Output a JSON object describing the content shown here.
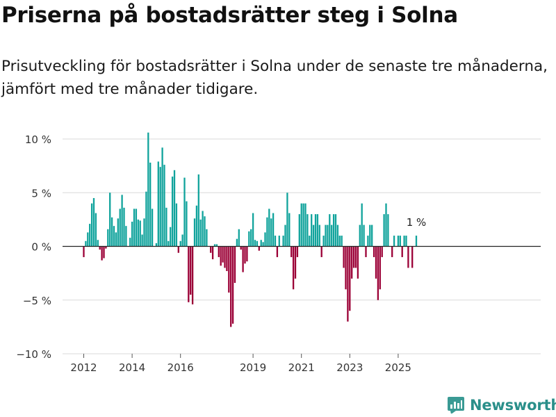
{
  "header": {
    "title": "Priserna på bostadsrätter steg i Solna",
    "subtitle": "Prisutveckling för bostadsrätter i Solna under de senaste tre månaderna, jämfört med tre månader tidigare."
  },
  "brand": {
    "name": "Newsworthy",
    "icon": "newsworthy-logo-icon",
    "color": "#3a9a94"
  },
  "colors": {
    "positive": "#10a39c",
    "negative": "#9b0036",
    "grid": "#d9d9d9",
    "zero_line": "#222222",
    "axis_text": "#333333"
  },
  "chart_data": {
    "type": "bar",
    "title": "",
    "xlabel": "",
    "ylabel": "",
    "unit": "%",
    "ylim": [
      -10,
      10
    ],
    "yticks": [
      10,
      5,
      0,
      -5,
      -10
    ],
    "ytick_labels": [
      "10 %",
      "5 %",
      "0 %",
      "−5 %",
      "−10 %"
    ],
    "x_start": "2012-01",
    "xticks": [
      "2012",
      "2014",
      "2016",
      "2019",
      "2021",
      "2023",
      "2025"
    ],
    "grid": true,
    "annotation": {
      "text": "1 %",
      "target": "last"
    },
    "values": [
      -1,
      0.5,
      1.3,
      2.1,
      4,
      4.5,
      3.1,
      0.6,
      -0.3,
      -1.3,
      -1.1,
      -0.2,
      1.6,
      5,
      2.7,
      1.9,
      1.3,
      2.6,
      3.5,
      4.8,
      3.6,
      1.9,
      0,
      0.8,
      2.3,
      3.5,
      3.5,
      2.5,
      2.4,
      1.1,
      2.6,
      5.1,
      10.6,
      7.8,
      3.5,
      0,
      0.3,
      7.9,
      7.4,
      9.2,
      7.6,
      3.6,
      0.5,
      1.8,
      6.5,
      7.1,
      4,
      -0.6,
      0.5,
      1.1,
      6.4,
      4.2,
      -5.2,
      -4.5,
      -5.4,
      2.6,
      3.8,
      6.7,
      2.5,
      3.3,
      2.8,
      1.6,
      0,
      -0.6,
      -1.2,
      0.2,
      0.2,
      -1,
      -1.8,
      -1.5,
      -2,
      -2.3,
      -4.3,
      -7.5,
      -7.2,
      -3.4,
      0.7,
      1.6,
      -0.3,
      -2.4,
      -1.6,
      -1.4,
      1.4,
      1.6,
      3.1,
      0.6,
      0.5,
      -0.4,
      0.6,
      0.4,
      1.3,
      2.7,
      3.5,
      2.6,
      3.1,
      1,
      -1,
      1,
      0,
      1,
      2,
      5,
      3.1,
      -1,
      -4,
      -3,
      -1,
      3,
      4,
      4,
      4,
      3,
      1,
      3,
      2,
      3,
      3,
      2,
      -1,
      1,
      2,
      2,
      3,
      2,
      3,
      3,
      2,
      1,
      1,
      -2,
      -4,
      -7,
      -6,
      -3,
      -2,
      -2,
      -3,
      2,
      4,
      2,
      -1,
      1,
      2,
      2,
      -1,
      -3,
      -5,
      -4,
      -1,
      3,
      4,
      3,
      0,
      -1,
      1,
      0,
      1,
      1,
      -1,
      1,
      1,
      -2,
      0,
      -2,
      0,
      1
    ]
  }
}
